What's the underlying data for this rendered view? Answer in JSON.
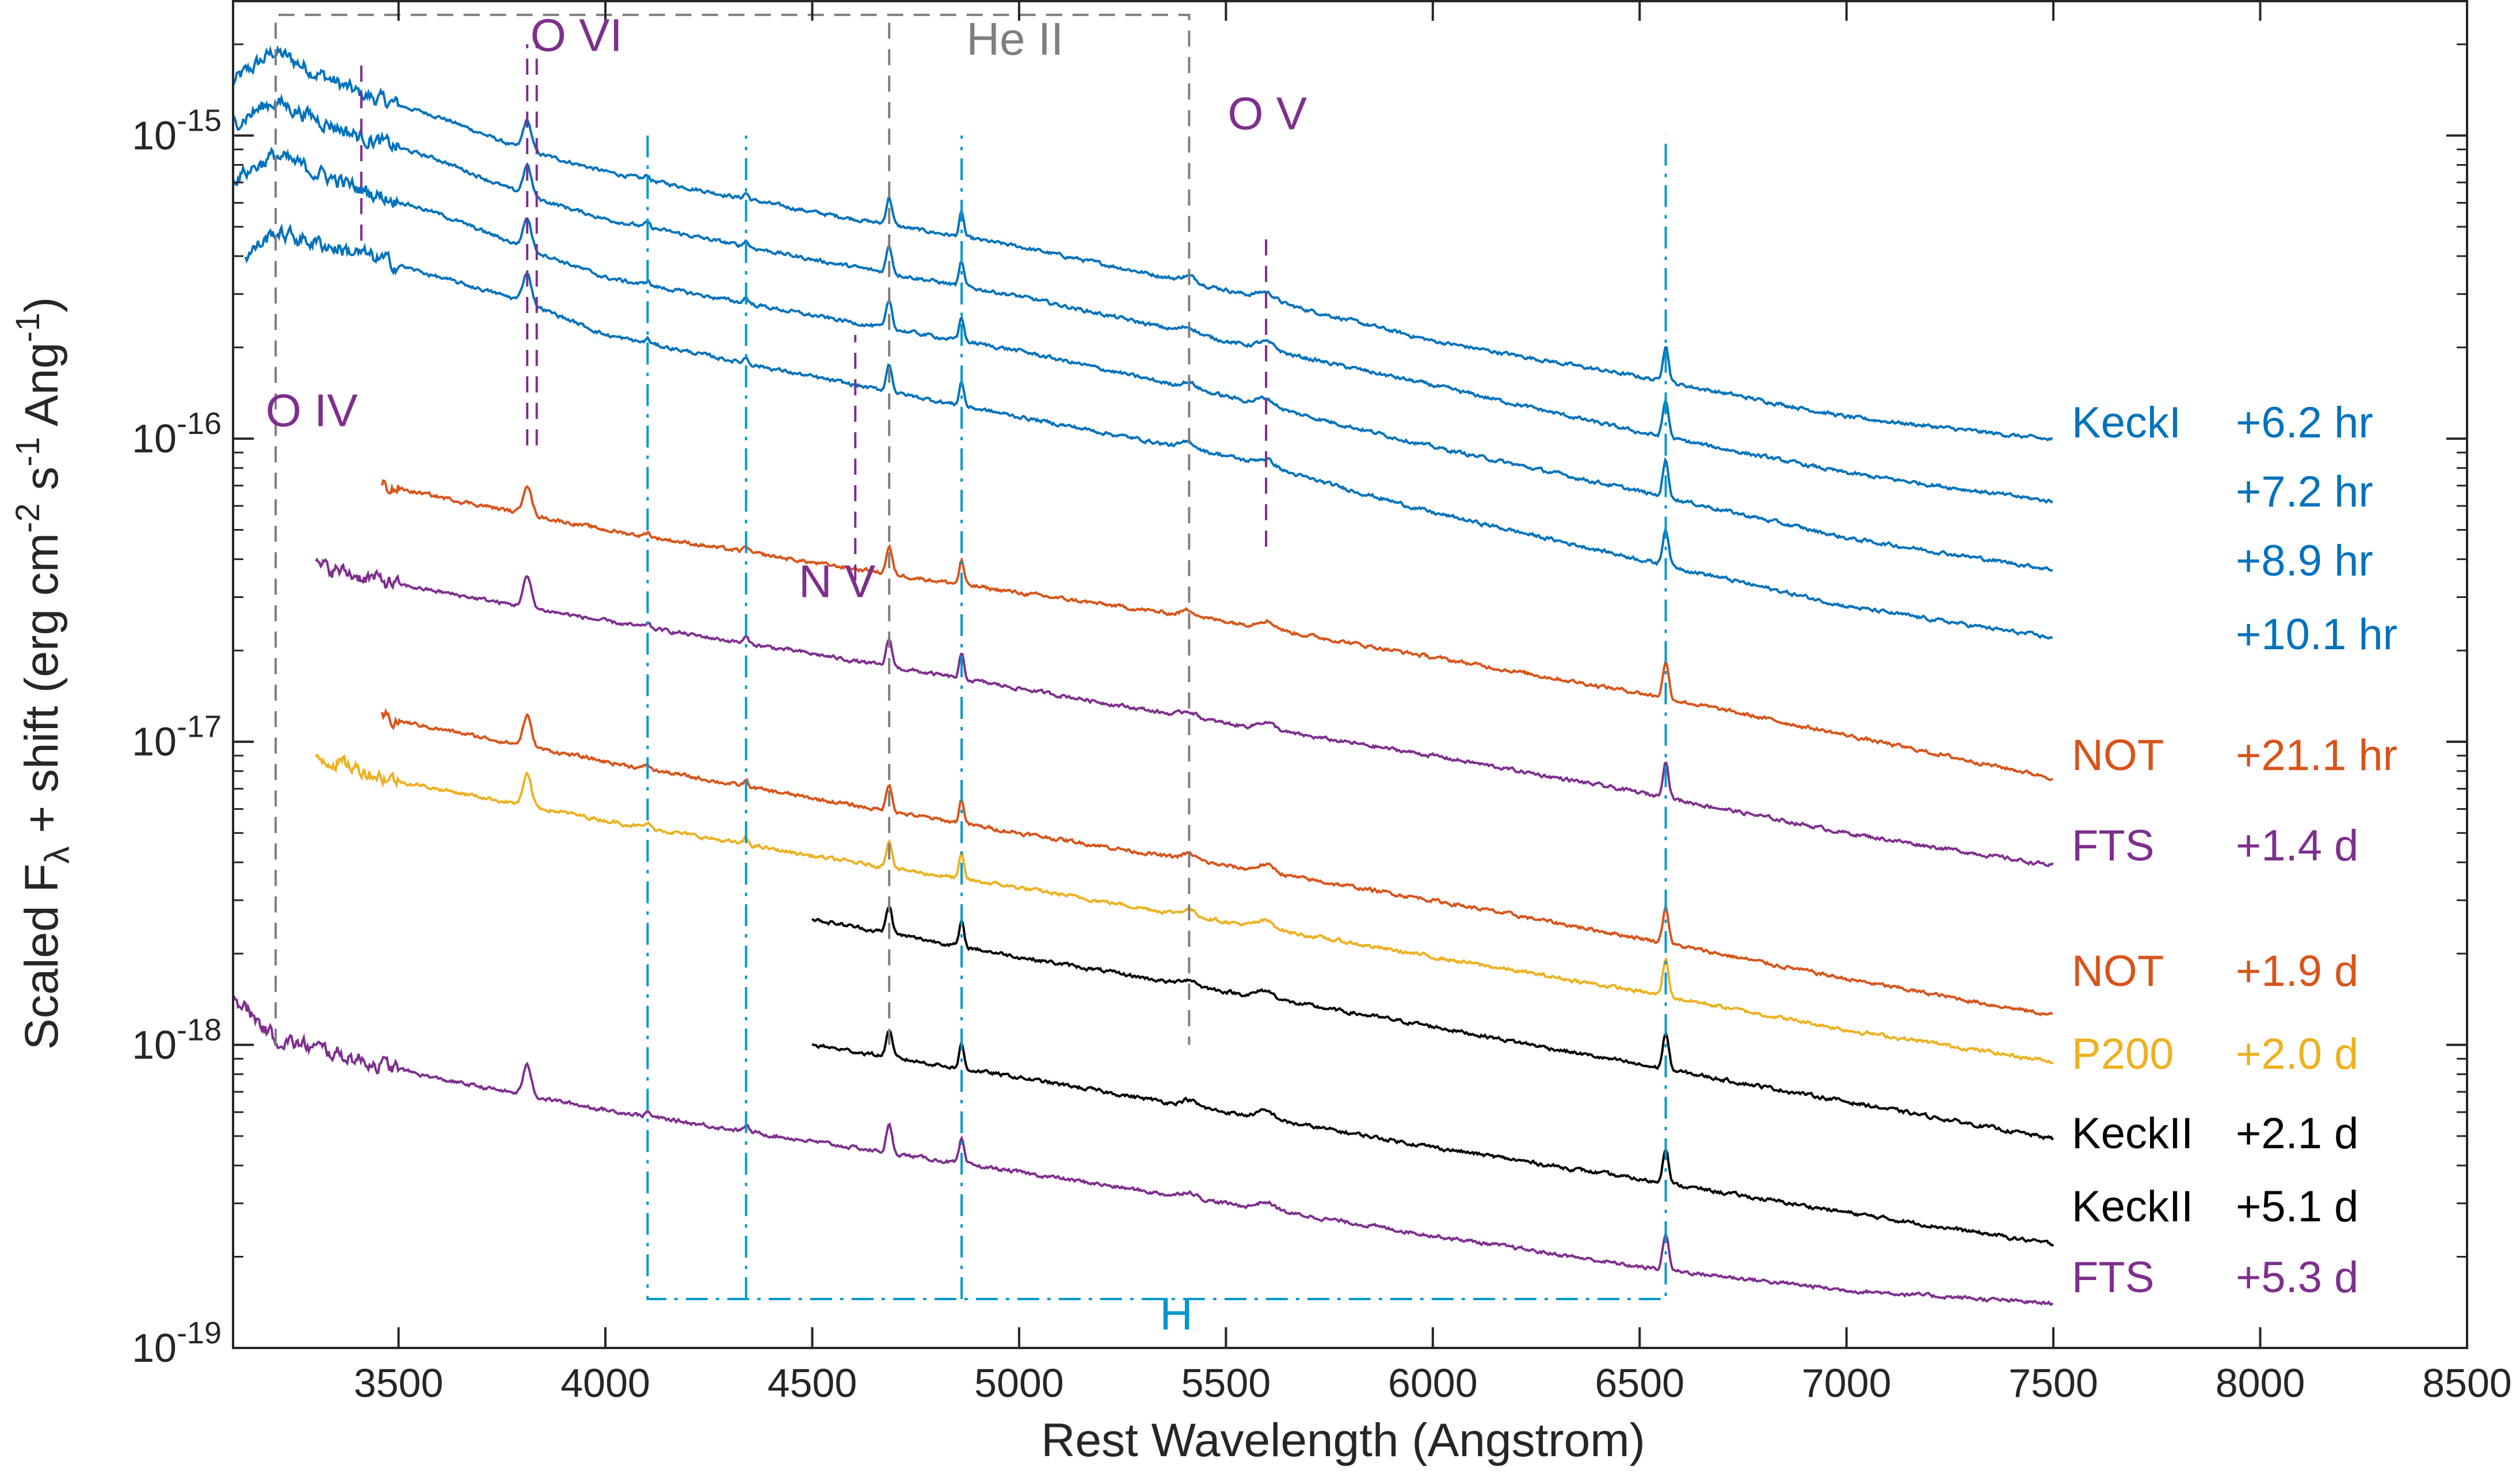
{
  "chart_data": {
    "type": "line",
    "title": "",
    "xlabel": "Rest Wavelength (Angstrom)",
    "ylabel": "Scaled F_λ + shift (erg cm^-2 s^-1 Ang^-1)",
    "ylabel_parts": {
      "main": "Scaled F",
      "sub": "λ",
      "shift": " + shift (erg cm",
      "exp1": "-2",
      "s": " s",
      "exp2": "-1",
      "ang": " Ang",
      "exp3": "-1",
      "close": ")"
    },
    "xlim": [
      3100,
      8500
    ],
    "ylim": [
      1e-19,
      2.8e-15
    ],
    "yscale": "log",
    "xticks": [
      3500,
      4000,
      4500,
      5000,
      5500,
      6000,
      6500,
      7000,
      7500,
      8000,
      8500
    ],
    "yticks": [
      {
        "value": 1e-19,
        "mant": "10",
        "exp": "-19"
      },
      {
        "value": 1e-18,
        "mant": "10",
        "exp": "-18"
      },
      {
        "value": 1e-17,
        "mant": "10",
        "exp": "-17"
      },
      {
        "value": 1e-16,
        "mant": "10",
        "exp": "-16"
      },
      {
        "value": 1e-15,
        "mant": "10",
        "exp": "-15"
      }
    ],
    "colors": {
      "keck1": "#0072BD",
      "not": "#D95319",
      "fts": "#7E2F8E",
      "p200": "#EDB120",
      "keck2": "#000000",
      "ann_purple": "#7E2F8E",
      "ann_gray": "#7F7F7F",
      "ann_blue": "#0099CC"
    },
    "series": [
      {
        "telescope": "KeckI",
        "epoch": "+6.2 hr",
        "color": "#0072BD",
        "x_range": [
          3100,
          7500
        ],
        "y_at": [
          [
            3100,
            1.5e-15
          ],
          [
            3200,
            1.9e-15
          ],
          [
            3400,
            1.38e-15
          ],
          [
            3600,
            1.15e-15
          ],
          [
            3800,
            9e-16
          ],
          [
            4000,
            7.6e-16
          ],
          [
            4500,
            5.6e-16
          ],
          [
            5000,
            4.3e-16
          ],
          [
            5500,
            3.1e-16
          ],
          [
            6000,
            2.1e-16
          ],
          [
            6500,
            1.6e-16
          ],
          [
            7000,
            1.18e-16
          ],
          [
            7500,
            9.9e-17
          ]
        ]
      },
      {
        "telescope": "",
        "epoch": "+7.2 hr",
        "color": "#0072BD",
        "x_range": [
          3100,
          7500
        ],
        "y_at": [
          [
            3100,
            1.1e-15
          ],
          [
            3200,
            1.3e-15
          ],
          [
            3400,
            1e-15
          ],
          [
            3600,
            8.3e-16
          ],
          [
            3800,
            6.4e-16
          ],
          [
            4000,
            5.3e-16
          ],
          [
            4500,
            3.9e-16
          ],
          [
            5000,
            2.95e-16
          ],
          [
            5500,
            2.1e-16
          ],
          [
            6000,
            1.5e-16
          ],
          [
            6500,
            1.05e-16
          ],
          [
            7000,
            7.7e-17
          ],
          [
            7500,
            6.2e-17
          ]
        ]
      },
      {
        "telescope": "",
        "epoch": "+8.9 hr",
        "color": "#0072BD",
        "x_range": [
          3100,
          7500
        ],
        "y_at": [
          [
            3100,
            7.2e-16
          ],
          [
            3200,
            8.6e-16
          ],
          [
            3400,
            6.7e-16
          ],
          [
            3600,
            5.5e-16
          ],
          [
            3800,
            4.3e-16
          ],
          [
            4000,
            3.4e-16
          ],
          [
            4500,
            2.55e-16
          ],
          [
            5000,
            1.95e-16
          ],
          [
            5500,
            1.38e-16
          ],
          [
            6000,
            9.4e-17
          ],
          [
            6500,
            6.7e-17
          ],
          [
            7000,
            4.7e-17
          ],
          [
            7500,
            3.7e-17
          ]
        ]
      },
      {
        "telescope": "",
        "epoch": "+10.1 hr",
        "color": "#0072BD",
        "x_range": [
          3130,
          7500
        ],
        "y_at": [
          [
            3130,
            4e-16
          ],
          [
            3200,
            4.8e-16
          ],
          [
            3400,
            4.1e-16
          ],
          [
            3600,
            3.4e-16
          ],
          [
            3800,
            2.85e-16
          ],
          [
            4000,
            2.2e-16
          ],
          [
            4500,
            1.6e-16
          ],
          [
            5000,
            1.18e-16
          ],
          [
            5500,
            8.8e-17
          ],
          [
            6000,
            5.7e-17
          ],
          [
            6500,
            4e-17
          ],
          [
            7000,
            2.8e-17
          ],
          [
            7500,
            2.2e-17
          ]
        ]
      },
      {
        "telescope": "NOT",
        "epoch": "+21.1 hr",
        "color": "#D95319",
        "x_range": [
          3460,
          7500
        ],
        "y_at": [
          [
            3460,
            7e-17
          ],
          [
            4000,
            5e-17
          ],
          [
            4500,
            3.9e-17
          ],
          [
            5000,
            3.1e-17
          ],
          [
            5500,
            2.5e-17
          ],
          [
            6000,
            1.9e-17
          ],
          [
            6500,
            1.45e-17
          ],
          [
            7000,
            1.05e-17
          ],
          [
            7500,
            7.6e-18
          ]
        ]
      },
      {
        "telescope": "FTS",
        "epoch": "+1.4 d",
        "color": "#7E2F8E",
        "x_range": [
          3300,
          7500
        ],
        "y_at": [
          [
            3300,
            3.8e-17
          ],
          [
            3500,
            3.3e-17
          ],
          [
            4000,
            2.5e-17
          ],
          [
            4500,
            1.95e-17
          ],
          [
            5000,
            1.5e-17
          ],
          [
            5500,
            1.15e-17
          ],
          [
            6000,
            9e-18
          ],
          [
            6500,
            6.8e-18
          ],
          [
            7000,
            5e-18
          ],
          [
            7500,
            3.9e-18
          ]
        ]
      },
      {
        "telescope": "NOT",
        "epoch": "+1.9 d",
        "color": "#D95319",
        "x_range": [
          3460,
          7500
        ],
        "y_at": [
          [
            3460,
            1.2e-17
          ],
          [
            4000,
            8.6e-18
          ],
          [
            4500,
            6.5e-18
          ],
          [
            5000,
            5e-18
          ],
          [
            5500,
            3.9e-18
          ],
          [
            6000,
            3e-18
          ],
          [
            6500,
            2.25e-18
          ],
          [
            7000,
            1.65e-18
          ],
          [
            7500,
            1.25e-18
          ]
        ]
      },
      {
        "telescope": "P200",
        "epoch": "+2.0 d",
        "color": "#EDB120",
        "x_range": [
          3300,
          7500
        ],
        "y_at": [
          [
            3300,
            9e-18
          ],
          [
            3500,
            7.4e-18
          ],
          [
            4000,
            5.5e-18
          ],
          [
            4500,
            4.2e-18
          ],
          [
            5000,
            3.3e-18
          ],
          [
            5500,
            2.55e-18
          ],
          [
            6000,
            1.95e-18
          ],
          [
            6500,
            1.5e-18
          ],
          [
            7000,
            1.12e-18
          ],
          [
            7500,
            8.8e-19
          ]
        ]
      },
      {
        "telescope": "KeckII",
        "epoch": "+2.1 d",
        "color": "#000000",
        "x_range": [
          4500,
          7500
        ],
        "y_at": [
          [
            4500,
            2.6e-18
          ],
          [
            5000,
            1.95e-18
          ],
          [
            5500,
            1.5e-18
          ],
          [
            6000,
            1.15e-18
          ],
          [
            6500,
            8.6e-19
          ],
          [
            7000,
            6.5e-19
          ],
          [
            7500,
            4.9e-19
          ]
        ]
      },
      {
        "telescope": "KeckII",
        "epoch": "+5.1 d",
        "color": "#000000",
        "x_range": [
          4500,
          7500
        ],
        "y_at": [
          [
            4500,
            1e-18
          ],
          [
            5000,
            7.8e-19
          ],
          [
            5500,
            6e-19
          ],
          [
            6000,
            4.6e-19
          ],
          [
            6500,
            3.6e-19
          ],
          [
            7000,
            2.8e-19
          ],
          [
            7500,
            2.2e-19
          ]
        ]
      },
      {
        "telescope": "FTS",
        "epoch": "+5.3 d",
        "color": "#7E2F8E",
        "x_range": [
          3100,
          7500
        ],
        "y_at": [
          [
            3100,
            1.45e-18
          ],
          [
            3200,
            1.05e-18
          ],
          [
            3400,
            9e-19
          ],
          [
            3600,
            7.7e-19
          ],
          [
            4000,
            6.1e-19
          ],
          [
            4500,
            4.8e-19
          ],
          [
            5000,
            3.8e-19
          ],
          [
            5500,
            3e-19
          ],
          [
            6000,
            2.35e-19
          ],
          [
            6500,
            1.85e-19
          ],
          [
            7000,
            1.55e-19
          ],
          [
            7500,
            1.4e-19
          ]
        ]
      }
    ],
    "line_markers": [
      {
        "label": "O VI",
        "color": "#7E2F8E",
        "style": "dashed",
        "x": [
          3811,
          3834
        ],
        "y_range": [
          9.5e-17,
          2e-15
        ],
        "label_at": [
          3930,
          1.9e-15
        ]
      },
      {
        "label": "O IV",
        "color": "#7E2F8E",
        "style": "dashed",
        "x": [
          3410
        ],
        "y_range": [
          4.5e-16,
          1.8e-15
        ],
        "label_at": [
          3290,
          1.1e-16
        ]
      },
      {
        "label": "N V",
        "color": "#7E2F8E",
        "style": "dashed",
        "x": [
          4604
        ],
        "y_range": [
          3.4e-17,
          2.2e-16
        ],
        "label_at": [
          4560,
          3e-17
        ]
      },
      {
        "label": "O V",
        "color": "#7E2F8E",
        "style": "dashed",
        "x": [
          5597
        ],
        "y_range": [
          4.4e-17,
          4.8e-16
        ],
        "label_at": [
          5600,
          1.05e-15
        ]
      },
      {
        "label": "He II",
        "color": "#7F7F7F",
        "style": "dashed",
        "box": {
          "x": [
            3203,
            5411
          ],
          "y": [
            1e-18,
            2.5e-15
          ],
          "inner": [
            4686
          ]
        },
        "label_at": [
          4990,
          1.85e-15
        ]
      },
      {
        "label": "H",
        "color": "#0099CC",
        "style": "dashdot",
        "box": {
          "x": [
            4102,
            6563
          ],
          "y": [
            1.45e-19,
            1e-15
          ],
          "inner": [
            4340,
            4861
          ]
        },
        "label_at": [
          5380,
          1.15e-19
        ]
      }
    ]
  }
}
